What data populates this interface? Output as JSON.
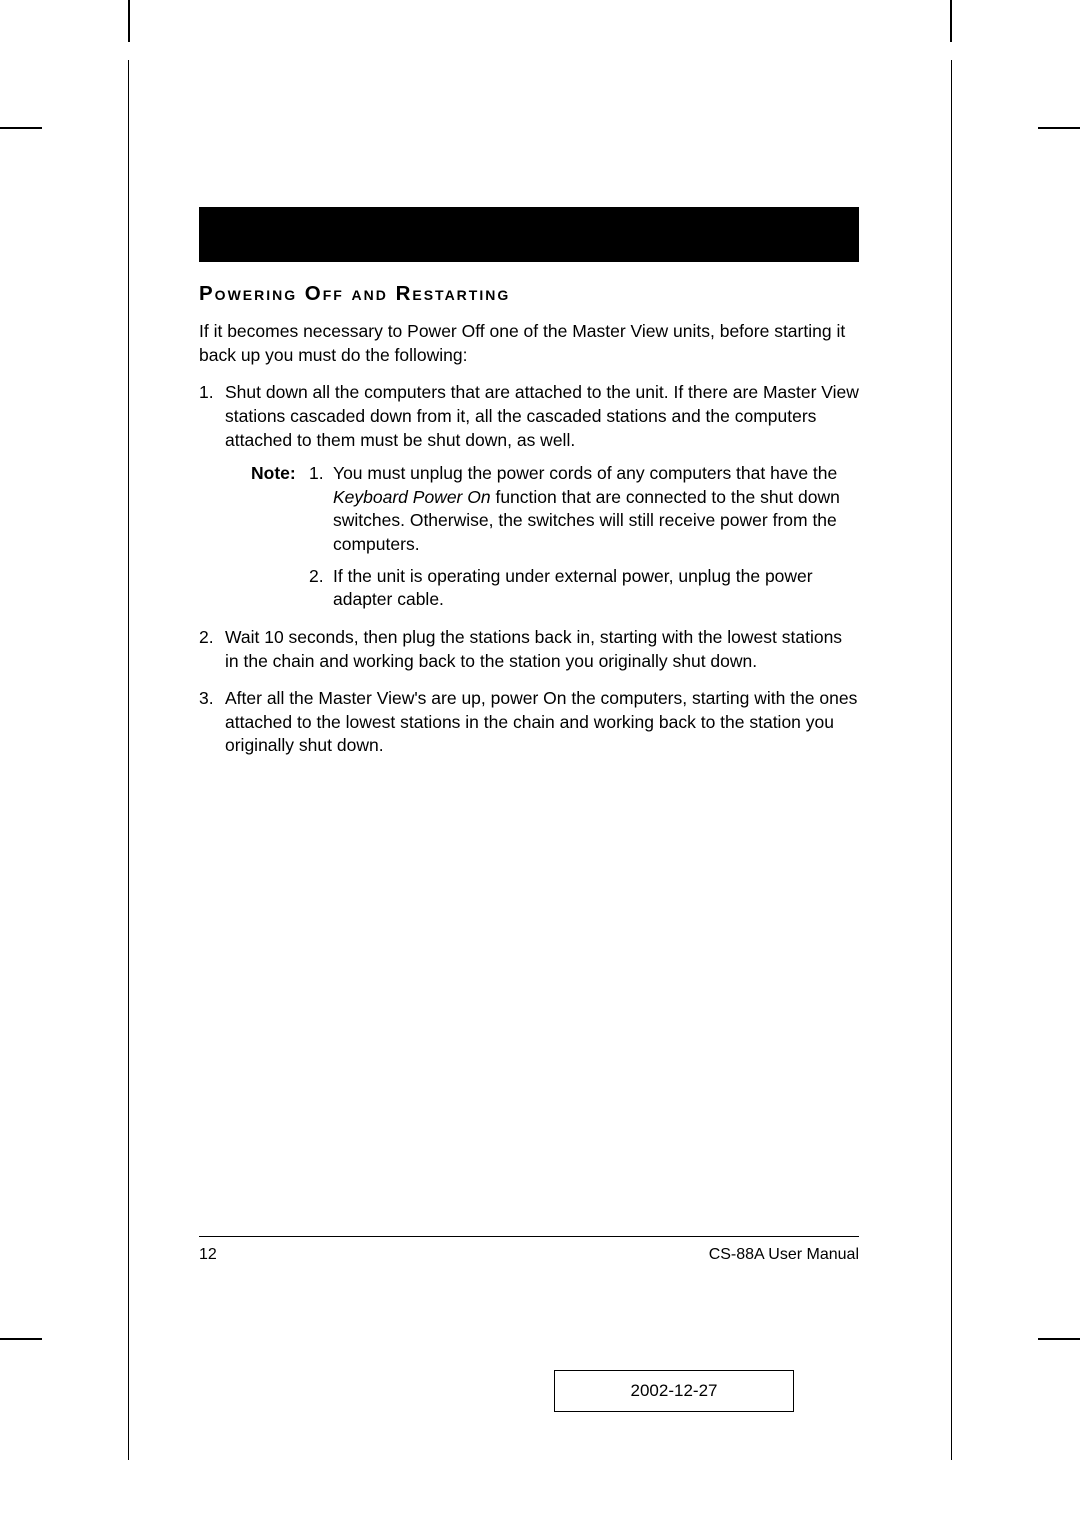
{
  "heading": "Powering Off and Restarting",
  "intro": "If it becomes necessary to Power Off one of the Master View units, before starting it back up you must do the following:",
  "steps": [
    {
      "num": "1.",
      "text": "Shut down all the computers that are attached to the unit. If there are Master View stations cascaded down from it, all the cascaded stations and the computers attached to them must be shut down, as well.",
      "notes": [
        {
          "label": "Note:",
          "num": "1.",
          "pre": "You must unplug the power cords of any computers that have the ",
          "italic": "Keyboard Power On",
          "post": " function that are connected to the shut down switches. Otherwise, the switches will still receive power from the computers."
        },
        {
          "label": "",
          "num": "2.",
          "pre": "If the unit is operating under external power, unplug the power adapter cable.",
          "italic": "",
          "post": ""
        }
      ]
    },
    {
      "num": "2.",
      "text": "Wait 10 seconds, then plug the stations back in, starting with the lowest stations in the chain and working back to the station you originally shut down."
    },
    {
      "num": "3.",
      "text": "After all the Master View's are up, power On the computers, starting with the ones attached to the lowest stations in the chain and working back to the station you originally shut down."
    }
  ],
  "footer": {
    "page": "12",
    "doc": "CS-88A User Manual"
  },
  "date": "2002-12-27",
  "colors": {
    "black": "#000000",
    "white": "#ffffff"
  }
}
